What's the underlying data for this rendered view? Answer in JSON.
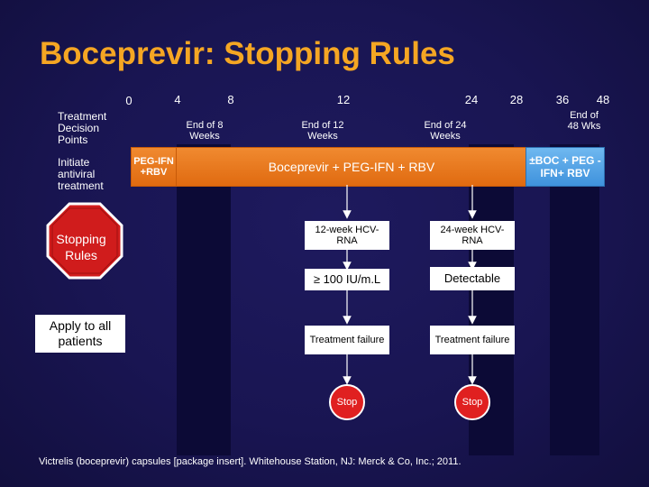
{
  "title": "Boceprevir: Stopping Rules",
  "week_labels": [
    "0",
    "4",
    "8",
    "12",
    "24",
    "28",
    "36",
    "48"
  ],
  "row_labels": {
    "decision_points": "Treatment Decision Points",
    "initiate": "Initiate antiviral treatment"
  },
  "milestones": {
    "week8": "End of 8 Weeks",
    "week12": "End of 12 Weeks",
    "week24": "End of 24 Weeks",
    "week48": "End of 48 Wks"
  },
  "treatment": {
    "lead_in": "PEG-IFN +RBV",
    "main": "Boceprevir + PEG-IFN + RBV",
    "extension": "±BOC + PEG -IFN+ RBV"
  },
  "stopping_rules": "Stopping Rules",
  "apply_all": "Apply to all patients",
  "flow": {
    "week12": {
      "test": "12-week HCV-RNA",
      "threshold": "≥ 100 IU/m.L",
      "outcome": "Treatment failure",
      "stop": "Stop"
    },
    "week24": {
      "test": "24-week HCV-RNA",
      "threshold": "Detectable",
      "outcome": "Treatment failure",
      "stop": "Stop"
    }
  },
  "footer": "Victrelis (boceprevir) capsules [package insert]. Whitehouse Station, NJ: Merck & Co, Inc.; 2011.",
  "colors": {
    "background": "#191552",
    "title": "#f5a623",
    "treatment_bar": "#e87a20",
    "extension_box": "#4a9de0",
    "stop_sign": "#d01c1c"
  }
}
